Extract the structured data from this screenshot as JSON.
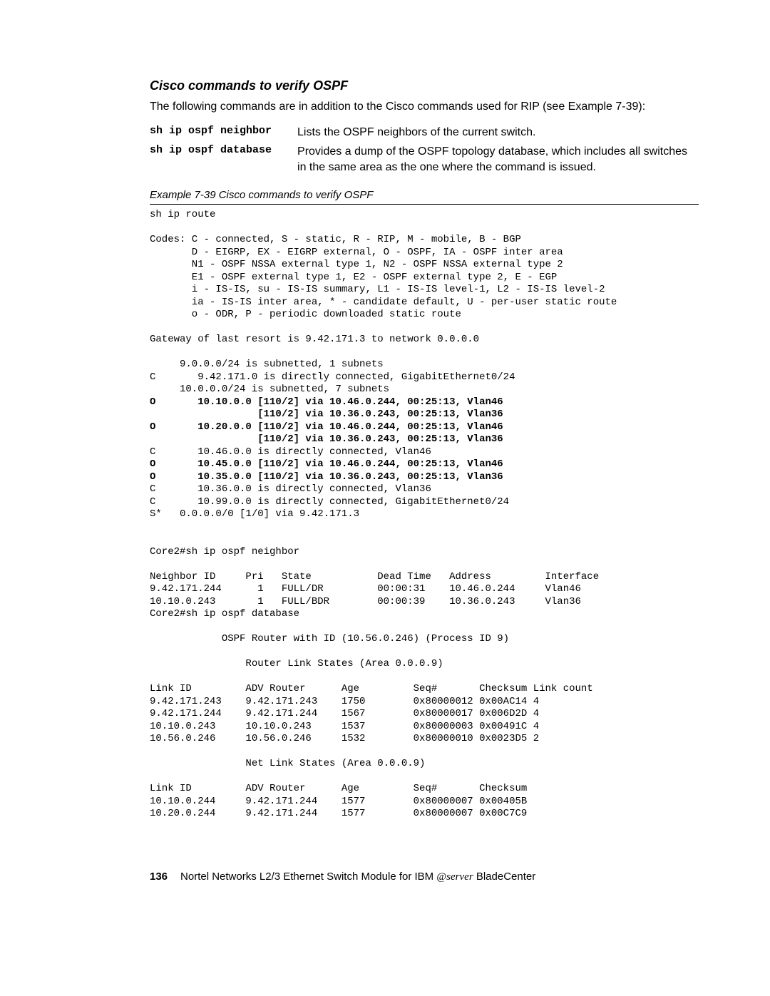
{
  "heading": "Cisco commands to verify OSPF",
  "intro": "The following commands are in addition to the Cisco commands used for RIP (see Example 7-39):",
  "commands": [
    {
      "name": "sh ip ospf neighbor",
      "desc": "Lists the OSPF neighbors of the current switch."
    },
    {
      "name": "sh ip ospf database",
      "desc": "Provides a dump of the OSPF topology database, which includes all switches in the same area as the one where the command is issued."
    }
  ],
  "example_caption": "Example 7-39   Cisco commands to verify OSPF",
  "terminal": {
    "line1": "sh ip route",
    "codes1": "Codes: C - connected, S - static, R - RIP, M - mobile, B - BGP",
    "codes2": "       D - EIGRP, EX - EIGRP external, O - OSPF, IA - OSPF inter area ",
    "codes3": "       N1 - OSPF NSSA external type 1, N2 - OSPF NSSA external type 2",
    "codes4": "       E1 - OSPF external type 1, E2 - OSPF external type 2, E - EGP",
    "codes5": "       i - IS-IS, su - IS-IS summary, L1 - IS-IS level-1, L2 - IS-IS level-2",
    "codes6": "       ia - IS-IS inter area, * - candidate default, U - per-user static route",
    "codes7": "       o - ODR, P - periodic downloaded static route",
    "gw": "Gateway of last resort is 9.42.171.3 to network 0.0.0.0",
    "r1": "     9.0.0.0/24 is subnetted, 1 subnets",
    "r2": "C       9.42.171.0 is directly connected, GigabitEthernet0/24",
    "r3": "     10.0.0.0/24 is subnetted, 7 subnets",
    "r4a": "O       10.10.0.0 [110/2] via 10.46.0.244, 00:25:13, Vlan46",
    "r4b": "                  [110/2] via 10.36.0.243, 00:25:13, Vlan36",
    "r5a": "O       10.20.0.0 [110/2] via 10.46.0.244, 00:25:13, Vlan46",
    "r5b": "                  [110/2] via 10.36.0.243, 00:25:13, Vlan36",
    "r6": "C       10.46.0.0 is directly connected, Vlan46",
    "r7": "O       10.45.0.0 [110/2] via 10.46.0.244, 00:25:13, Vlan46",
    "r8": "O       10.35.0.0 [110/2] via 10.36.0.243, 00:25:13, Vlan36",
    "r9": "C       10.36.0.0 is directly connected, Vlan36",
    "r10": "C       10.99.0.0 is directly connected, GigabitEthernet0/24",
    "r11": "S*   0.0.0.0/0 [1/0] via 9.42.171.3",
    "nb_cmd": "Core2#sh ip ospf neighbor",
    "nb_hdr": "Neighbor ID     Pri   State           Dead Time   Address         Interface",
    "nb1": "9.42.171.244      1   FULL/DR         00:00:31    10.46.0.244     Vlan46",
    "nb2": "10.10.0.243       1   FULL/BDR        00:00:39    10.36.0.243     Vlan36",
    "db_cmd": "Core2#sh ip ospf database",
    "db_hdr": "            OSPF Router with ID (10.56.0.246) (Process ID 9)",
    "rls_hdr": "                Router Link States (Area 0.0.0.9)",
    "ls_hdr": "Link ID         ADV Router      Age         Seq#       Checksum Link count",
    "ls1": "9.42.171.243    9.42.171.243    1750        0x80000012 0x00AC14 4",
    "ls2": "9.42.171.244    9.42.171.244    1567        0x80000017 0x006D2D 4",
    "ls3": "10.10.0.243     10.10.0.243     1537        0x80000003 0x00491C 4",
    "ls4": "10.56.0.246     10.56.0.246     1532        0x80000010 0x0023D5 2",
    "nls_hdr": "                Net Link States (Area 0.0.0.9)",
    "nls_cols": "Link ID         ADV Router      Age         Seq#       Checksum",
    "nls1": "10.10.0.244     9.42.171.244    1577        0x80000007 0x00405B",
    "nls2": "10.20.0.244     9.42.171.244    1577        0x80000007 0x00C7C9"
  },
  "footer": {
    "pagenum": "136",
    "title_before": "Nortel Networks L2/3 Ethernet Switch Module for IBM ",
    "eserver": "server",
    "title_after": " BladeCenter"
  }
}
